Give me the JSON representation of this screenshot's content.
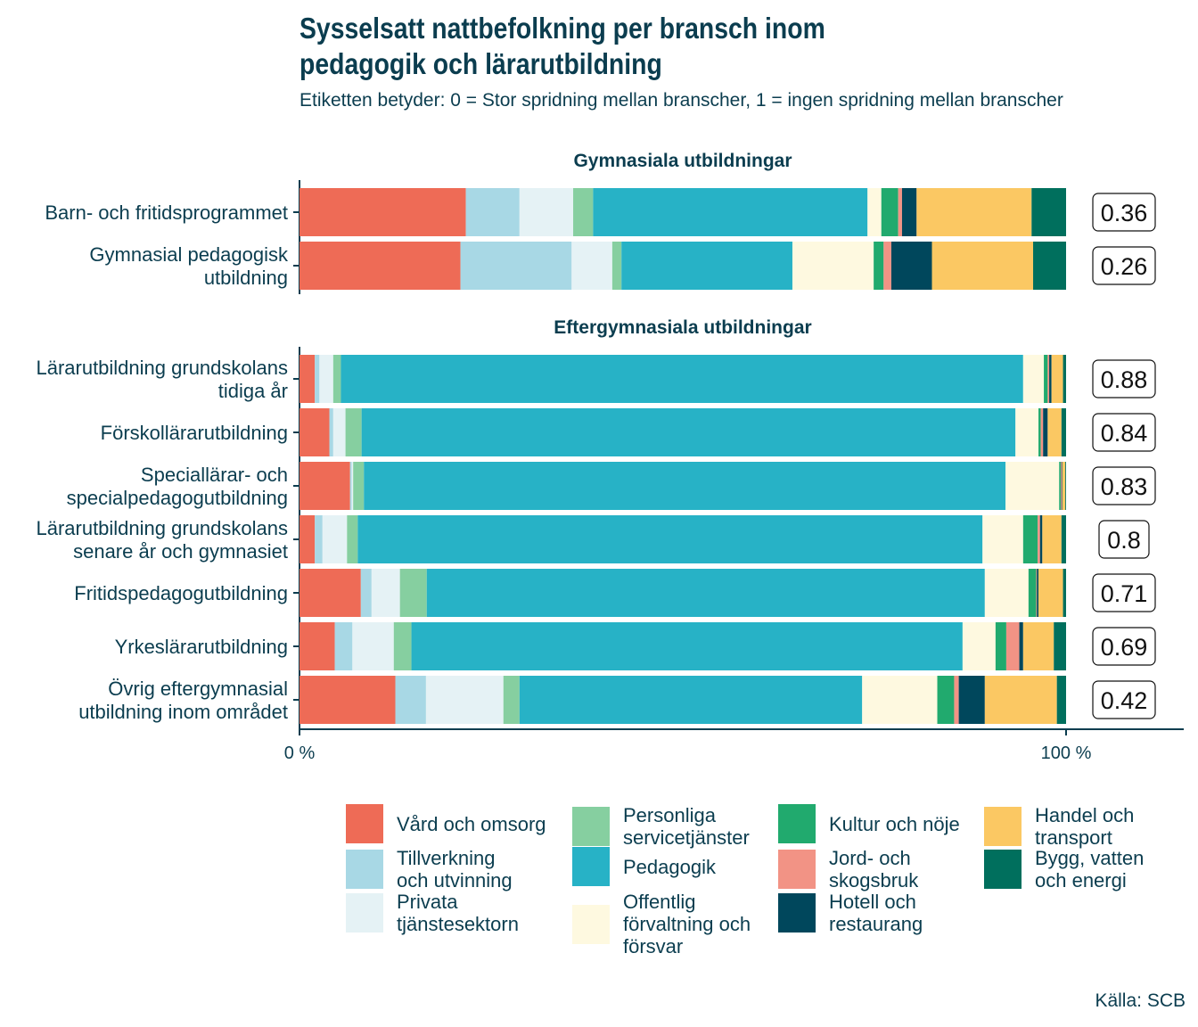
{
  "title_lines": [
    "Sysselsatt nattbefolkning per bransch inom",
    "pedagogik och lärarutbildning"
  ],
  "subtitle": "Etiketten betyder: 0 = Stor spridning mellan branscher, 1 = ingen spridning mellan branscher",
  "source": "Källa: SCB",
  "chart_data": {
    "type": "bar",
    "orientation": "horizontal-stacked-100",
    "xlim": [
      0,
      100
    ],
    "x_ticks": [
      "0 %",
      "100 %"
    ],
    "grid": false,
    "legend_position": "bottom",
    "series": [
      {
        "name": "Vård och omsorg",
        "color": "#EE6B56"
      },
      {
        "name": "Tillverkning och utvinning",
        "color": "#A8D8E5"
      },
      {
        "name": "Privata tjänstesektorn",
        "color": "#E5F2F5"
      },
      {
        "name": "Personliga servicetjänster",
        "color": "#86CFA0"
      },
      {
        "name": "Pedagogik",
        "color": "#27B2C6"
      },
      {
        "name": "Offentlig förvaltning och försvar",
        "color": "#FEF9E0"
      },
      {
        "name": "Kultur och nöje",
        "color": "#21AA6E"
      },
      {
        "name": "Jord- och skogsbruk",
        "color": "#F29385"
      },
      {
        "name": "Hotell och restaurang",
        "color": "#00475C"
      },
      {
        "name": "Handel och transport",
        "color": "#FBC863"
      },
      {
        "name": "Bygg, vatten och energi",
        "color": "#006F5D"
      }
    ],
    "panels": [
      {
        "title": "Gymnasiala utbildningar",
        "rows": [
          {
            "category": "Barn- och fritidsprogrammet",
            "label": "0.36",
            "values": [
              21.7,
              7.0,
              7.0,
              2.6,
              35.8,
              1.8,
              2.2,
              0.5,
              1.9,
              15.0,
              4.5
            ]
          },
          {
            "category": "Gymnasial pedagogisk\nutbildning",
            "label": "0.26",
            "values": [
              21.0,
              14.5,
              5.3,
              1.2,
              22.3,
              10.6,
              1.3,
              1.0,
              5.3,
              13.2,
              4.3
            ]
          }
        ]
      },
      {
        "title": "Eftergymnasiala utbildningar",
        "rows": [
          {
            "category": "Lärarutbildning grundskolans\ntidiga år",
            "label": "0.88",
            "values": [
              2.0,
              0.6,
              1.8,
              1.0,
              89.0,
              2.7,
              0.5,
              0.2,
              0.3,
              1.5,
              0.4
            ]
          },
          {
            "category": "Förskollärarutbildning",
            "label": "0.84",
            "values": [
              3.9,
              0.5,
              1.6,
              2.1,
              85.3,
              3.0,
              0.3,
              0.3,
              0.6,
              1.8,
              0.6
            ]
          },
          {
            "category": "Speciallärar- och\nspecialpedagogutbildning",
            "label": "0.83",
            "values": [
              6.6,
              0.2,
              0.2,
              1.4,
              83.7,
              7.0,
              0.2,
              0.1,
              0.1,
              0.4,
              0.1
            ]
          },
          {
            "category": "Lärarutbildning grundskolans\nsenare år och gymnasiet",
            "label": "0.8",
            "values": [
              2.0,
              1.0,
              3.2,
              1.4,
              81.5,
              5.3,
              1.9,
              0.3,
              0.3,
              2.5,
              0.6
            ]
          },
          {
            "category": "Fritidspedagogutbildning",
            "label": "0.71",
            "values": [
              8.0,
              1.4,
              3.7,
              3.5,
              72.8,
              5.7,
              1.0,
              0.1,
              0.2,
              3.2,
              0.4
            ]
          },
          {
            "category": "Yrkeslärarutbildning",
            "label": "0.69",
            "values": [
              4.6,
              2.3,
              5.4,
              2.3,
              71.9,
              4.3,
              1.4,
              1.7,
              0.5,
              4.0,
              1.6
            ]
          },
          {
            "category": "Övrig eftergymnasial\nutbildning inom området",
            "label": "0.42",
            "values": [
              12.5,
              4.0,
              10.1,
              2.1,
              44.7,
              9.8,
              2.2,
              0.6,
              3.4,
              9.4,
              1.2
            ]
          }
        ]
      }
    ]
  }
}
